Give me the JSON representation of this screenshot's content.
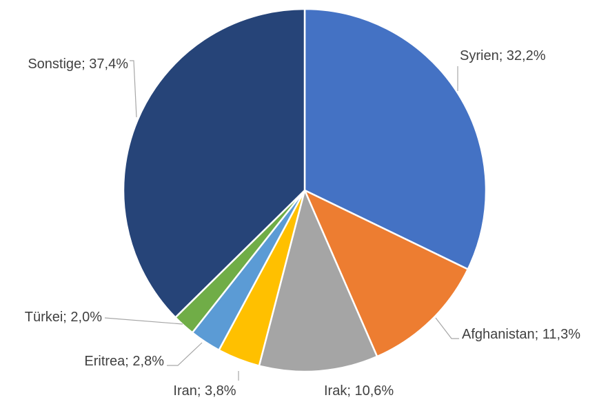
{
  "chart_data": {
    "type": "pie",
    "title": "",
    "start_angle_deg": 0,
    "direction": "clockwise",
    "separator": "; ",
    "slices": [
      {
        "label": "Syrien",
        "value": 32.2,
        "display": "32,2%",
        "color": "#4472C4"
      },
      {
        "label": "Afghanistan",
        "value": 11.3,
        "display": "11,3%",
        "color": "#ED7D31"
      },
      {
        "label": "Irak",
        "value": 10.6,
        "display": "10,6%",
        "color": "#A5A5A5"
      },
      {
        "label": "Iran",
        "value": 3.8,
        "display": "3,8%",
        "color": "#FFC000"
      },
      {
        "label": "Eritrea",
        "value": 2.8,
        "display": "2,8%",
        "color": "#5B9BD5"
      },
      {
        "label": "Türkei",
        "value": 2.0,
        "display": "2,0%",
        "color": "#70AD47"
      },
      {
        "label": "Sonstige",
        "value": 37.4,
        "display": "37,4%",
        "color": "#264478"
      }
    ],
    "legend": "none",
    "leader_line_color": "#A6A6A6",
    "label_color": "#404040"
  }
}
